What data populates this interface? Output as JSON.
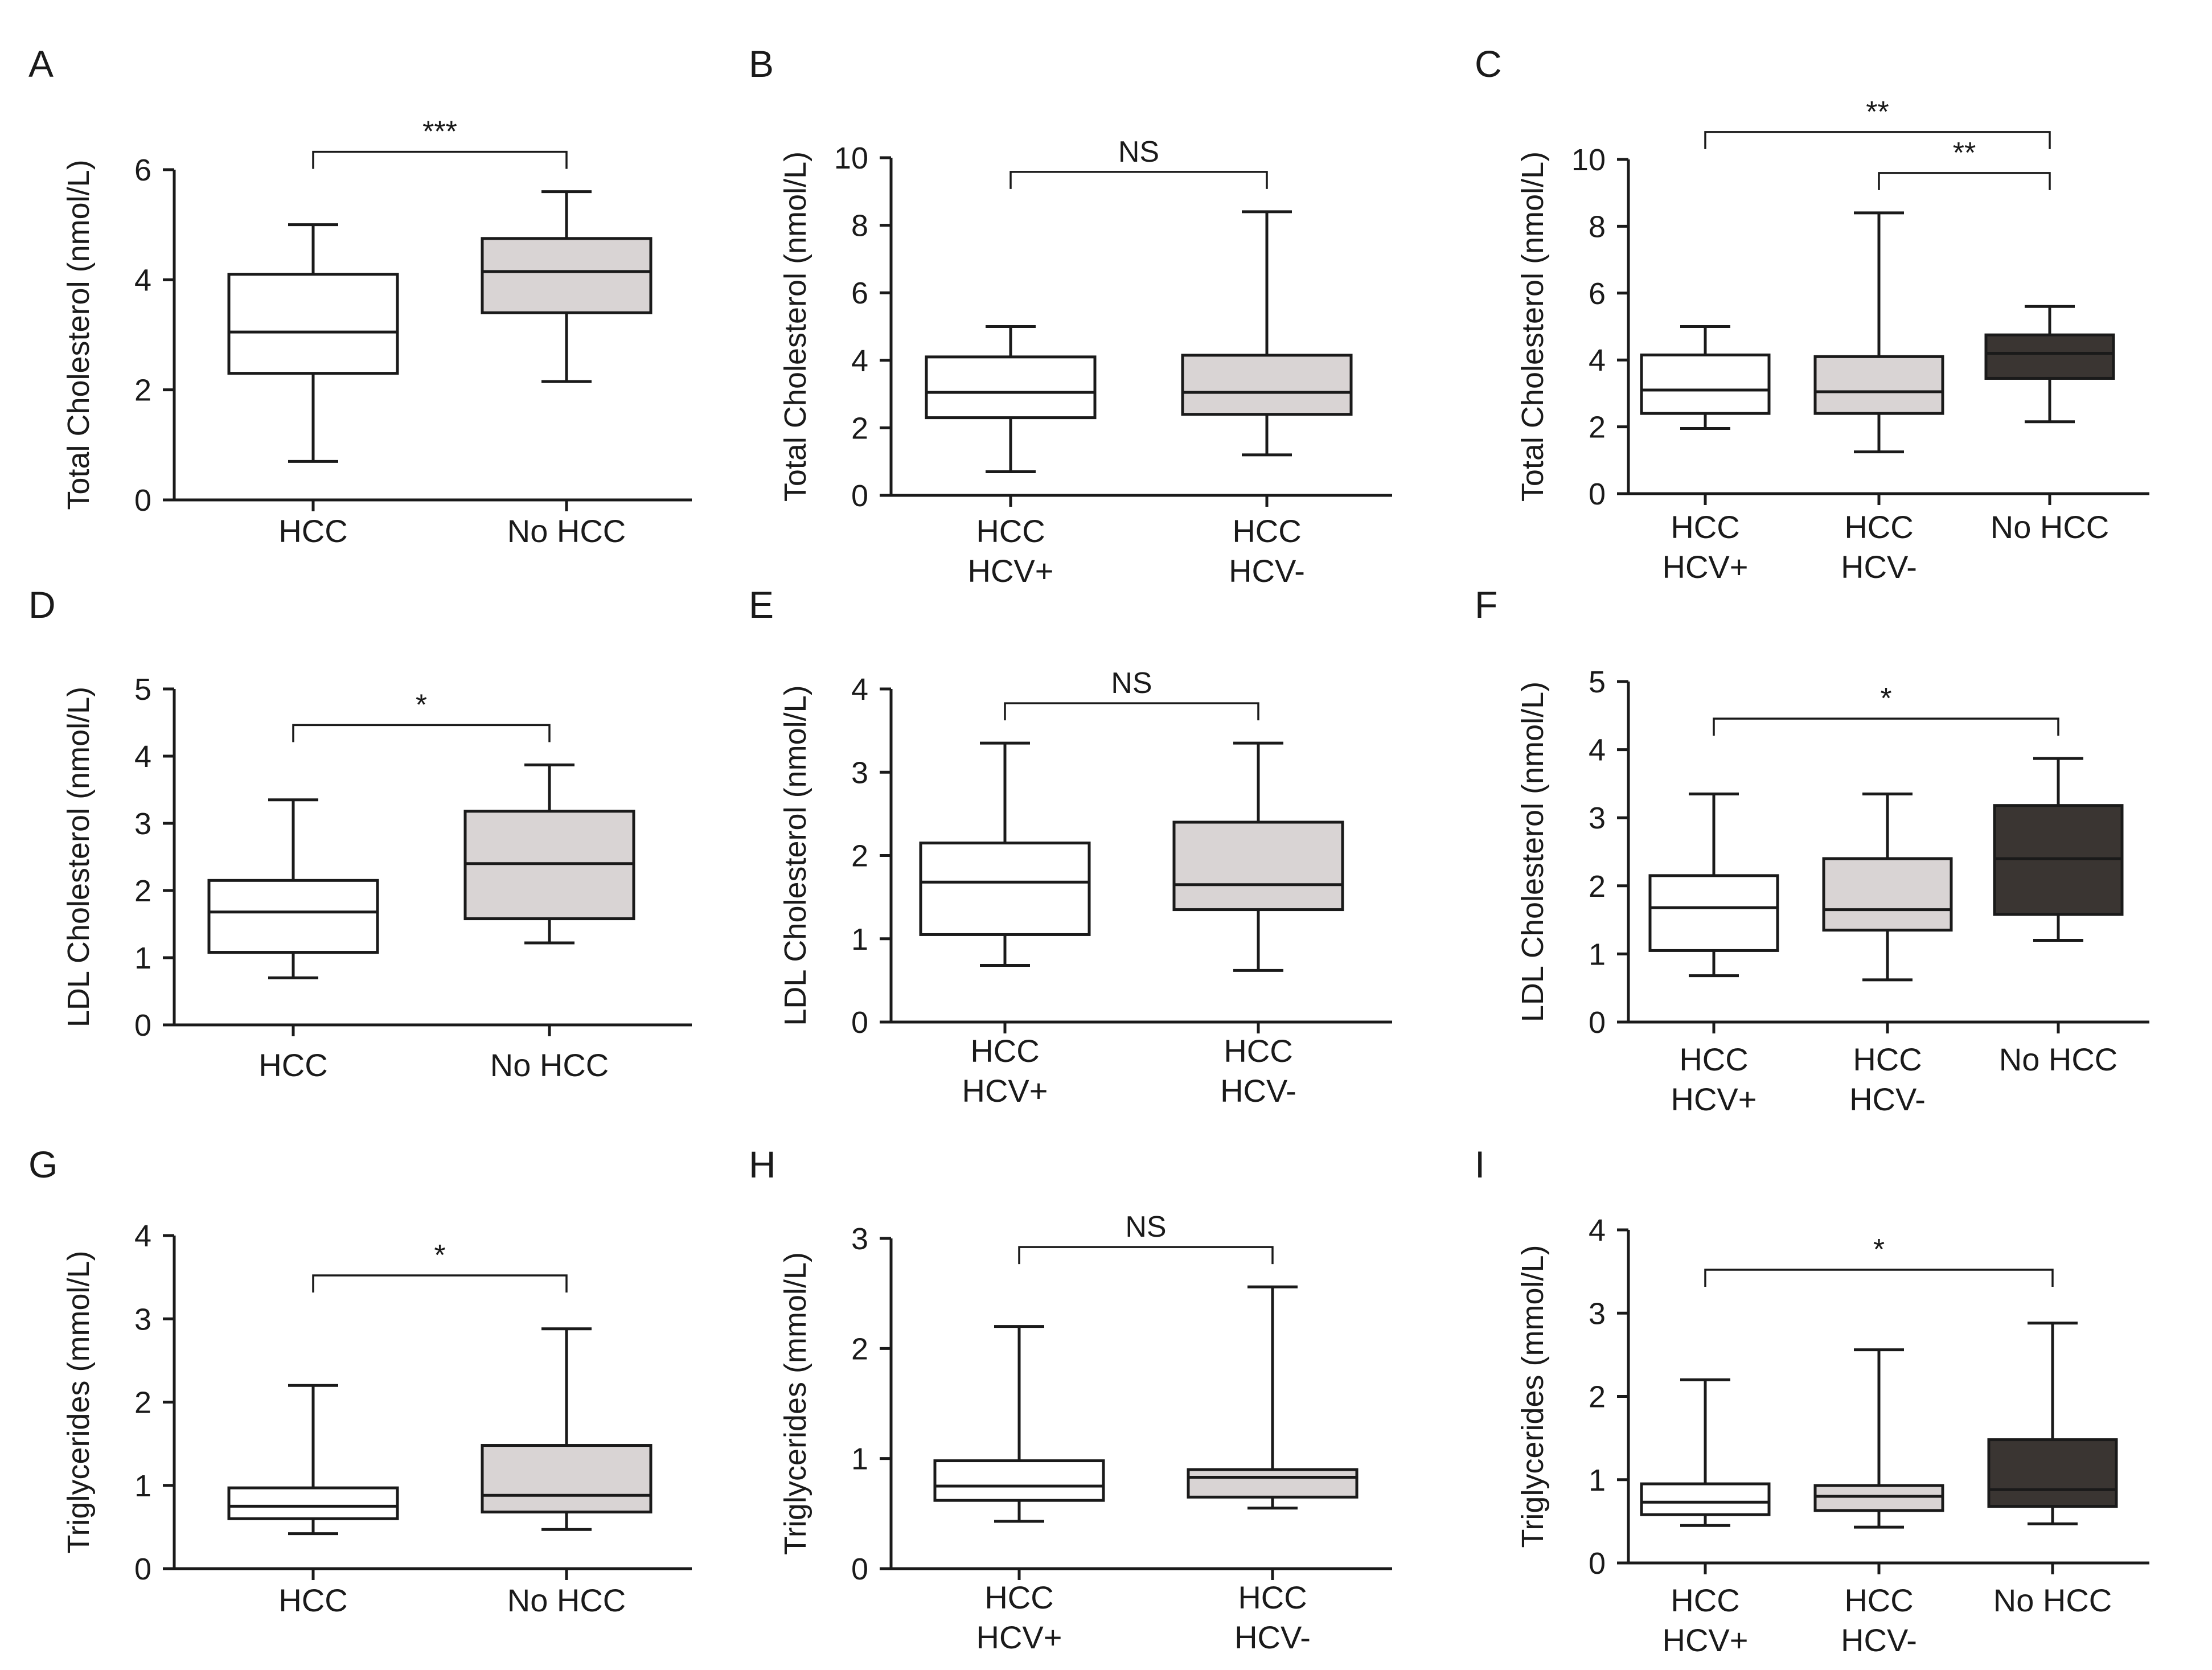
{
  "colors": {
    "hcc_fill": "#ffffff",
    "hcv_neg_fill": "#d9d4d4",
    "no_hcc_light_fill": "#d9d4d4",
    "no_hcc_dark_fill": "#3a3532",
    "line": "#1a1a1a"
  },
  "chart_data": [
    {
      "panel": "A",
      "type": "boxplot",
      "ylabel": "Total Cholesterol (nmol/L)",
      "ylim": [
        0,
        6
      ],
      "yticks": [
        0,
        2,
        4,
        6
      ],
      "categories": [
        [
          "HCC"
        ],
        [
          "No HCC"
        ]
      ],
      "boxes": [
        {
          "name": "HCC",
          "min": 0.7,
          "q1": 2.3,
          "median": 3.05,
          "q3": 4.1,
          "max": 5.0,
          "fill": "hcc_fill"
        },
        {
          "name": "No HCC",
          "min": 2.15,
          "q1": 3.4,
          "median": 4.15,
          "q3": 4.75,
          "max": 5.6,
          "fill": "no_hcc_light_fill"
        }
      ],
      "significance": [
        {
          "from": 0,
          "to": 1,
          "label": "***",
          "level": 0
        }
      ]
    },
    {
      "panel": "B",
      "type": "boxplot",
      "ylabel": "Total Cholesterol (nmol/L)",
      "ylim": [
        0,
        10
      ],
      "yticks": [
        0,
        2,
        4,
        6,
        8,
        10
      ],
      "categories": [
        [
          "HCC",
          "HCV+"
        ],
        [
          "HCC",
          "HCV-"
        ]
      ],
      "boxes": [
        {
          "name": "HCC HCV+",
          "min": 0.7,
          "q1": 2.3,
          "median": 3.05,
          "q3": 4.1,
          "max": 5.0,
          "fill": "hcc_fill"
        },
        {
          "name": "HCC HCV-",
          "min": 1.2,
          "q1": 2.4,
          "median": 3.05,
          "q3": 4.15,
          "max": 8.4,
          "fill": "hcv_neg_fill"
        }
      ],
      "significance": [
        {
          "from": 0,
          "to": 1,
          "label": "NS",
          "level": 0
        }
      ]
    },
    {
      "panel": "C",
      "type": "boxplot",
      "ylabel": "Total Cholesterol (nmol/L)",
      "ylim": [
        0,
        10
      ],
      "yticks": [
        0,
        2,
        4,
        6,
        8,
        10
      ],
      "categories": [
        [
          "HCC",
          "HCV+"
        ],
        [
          "HCC",
          "HCV-"
        ],
        [
          "No HCC"
        ]
      ],
      "boxes": [
        {
          "name": "HCC HCV+",
          "min": 1.95,
          "q1": 2.4,
          "median": 3.1,
          "q3": 4.15,
          "max": 5.0,
          "fill": "hcc_fill"
        },
        {
          "name": "HCC HCV-",
          "min": 1.25,
          "q1": 2.4,
          "median": 3.05,
          "q3": 4.1,
          "max": 8.4,
          "fill": "hcv_neg_fill"
        },
        {
          "name": "No HCC",
          "min": 2.15,
          "q1": 3.45,
          "median": 4.2,
          "q3": 4.75,
          "max": 5.6,
          "fill": "no_hcc_dark_fill"
        }
      ],
      "significance": [
        {
          "from": 0,
          "to": 2,
          "label": "**",
          "level": 1
        },
        {
          "from": 1,
          "to": 2,
          "label": "**",
          "level": 0
        }
      ]
    },
    {
      "panel": "D",
      "type": "boxplot",
      "ylabel": "LDL Cholesterol (nmol/L)",
      "ylim": [
        0,
        5
      ],
      "yticks": [
        0,
        1,
        2,
        3,
        4,
        5
      ],
      "categories": [
        [
          "HCC"
        ],
        [
          "No HCC"
        ]
      ],
      "boxes": [
        {
          "name": "HCC",
          "min": 0.7,
          "q1": 1.08,
          "median": 1.68,
          "q3": 2.15,
          "max": 3.35,
          "fill": "hcc_fill"
        },
        {
          "name": "No HCC",
          "min": 1.22,
          "q1": 1.58,
          "median": 2.4,
          "q3": 3.18,
          "max": 3.87,
          "fill": "no_hcc_light_fill"
        }
      ],
      "significance": [
        {
          "from": 0,
          "to": 1,
          "label": "*",
          "level": 0
        }
      ]
    },
    {
      "panel": "E",
      "type": "boxplot",
      "ylabel": "LDL Cholesterol (nmol/L)",
      "ylim": [
        0,
        4
      ],
      "yticks": [
        0,
        1,
        2,
        3,
        4
      ],
      "categories": [
        [
          "HCC",
          "HCV+"
        ],
        [
          "HCC",
          "HCV-"
        ]
      ],
      "boxes": [
        {
          "name": "HCC HCV+",
          "min": 0.68,
          "q1": 1.05,
          "median": 1.68,
          "q3": 2.15,
          "max": 3.35,
          "fill": "hcc_fill"
        },
        {
          "name": "HCC HCV-",
          "min": 0.62,
          "q1": 1.35,
          "median": 1.65,
          "q3": 2.4,
          "max": 3.35,
          "fill": "hcv_neg_fill"
        }
      ],
      "significance": [
        {
          "from": 0,
          "to": 1,
          "label": "NS",
          "level": 0
        }
      ]
    },
    {
      "panel": "F",
      "type": "boxplot",
      "ylabel": "LDL Cholesterol (nmol/L)",
      "ylim": [
        0,
        5
      ],
      "yticks": [
        0,
        1,
        2,
        3,
        4,
        5
      ],
      "categories": [
        [
          "HCC",
          "HCV+"
        ],
        [
          "HCC",
          "HCV-"
        ],
        [
          "No HCC"
        ]
      ],
      "boxes": [
        {
          "name": "HCC HCV+",
          "min": 0.68,
          "q1": 1.05,
          "median": 1.68,
          "q3": 2.15,
          "max": 3.35,
          "fill": "hcc_fill"
        },
        {
          "name": "HCC HCV-",
          "min": 0.62,
          "q1": 1.35,
          "median": 1.65,
          "q3": 2.4,
          "max": 3.35,
          "fill": "hcv_neg_fill"
        },
        {
          "name": "No HCC",
          "min": 1.2,
          "q1": 1.58,
          "median": 2.4,
          "q3": 3.18,
          "max": 3.87,
          "fill": "no_hcc_dark_fill"
        }
      ],
      "significance": [
        {
          "from": 0,
          "to": 2,
          "label": "*",
          "level": 0
        }
      ]
    },
    {
      "panel": "G",
      "type": "boxplot",
      "ylabel": "Triglycerides (mmol/L)",
      "ylim": [
        0,
        4
      ],
      "yticks": [
        0,
        1,
        2,
        3,
        4
      ],
      "categories": [
        [
          "HCC"
        ],
        [
          "No HCC"
        ]
      ],
      "boxes": [
        {
          "name": "HCC",
          "min": 0.42,
          "q1": 0.6,
          "median": 0.75,
          "q3": 0.97,
          "max": 2.2,
          "fill": "hcc_fill"
        },
        {
          "name": "No HCC",
          "min": 0.47,
          "q1": 0.68,
          "median": 0.88,
          "q3": 1.48,
          "max": 2.88,
          "fill": "no_hcc_light_fill"
        }
      ],
      "significance": [
        {
          "from": 0,
          "to": 1,
          "label": "*",
          "level": 0
        }
      ]
    },
    {
      "panel": "H",
      "type": "boxplot",
      "ylabel": "Triglycerides (mmol/L)",
      "ylim": [
        0,
        3
      ],
      "yticks": [
        0,
        1,
        2,
        3
      ],
      "categories": [
        [
          "HCC",
          "HCV+"
        ],
        [
          "HCC",
          "HCV-"
        ]
      ],
      "boxes": [
        {
          "name": "HCC HCV+",
          "min": 0.43,
          "q1": 0.62,
          "median": 0.75,
          "q3": 0.98,
          "max": 2.2,
          "fill": "hcc_fill"
        },
        {
          "name": "HCC HCV-",
          "min": 0.55,
          "q1": 0.65,
          "median": 0.83,
          "q3": 0.9,
          "max": 2.56,
          "fill": "hcv_neg_fill"
        }
      ],
      "significance": [
        {
          "from": 0,
          "to": 1,
          "label": "NS",
          "level": 0
        }
      ]
    },
    {
      "panel": "I",
      "type": "boxplot",
      "ylabel": "Triglycerides (mmol/L)",
      "ylim": [
        0,
        4
      ],
      "yticks": [
        0,
        1,
        2,
        3,
        4
      ],
      "categories": [
        [
          "HCC",
          "HCV+"
        ],
        [
          "HCC",
          "HCV-"
        ],
        [
          "No HCC"
        ]
      ],
      "boxes": [
        {
          "name": "HCC HCV+",
          "min": 0.45,
          "q1": 0.58,
          "median": 0.73,
          "q3": 0.95,
          "max": 2.2,
          "fill": "hcc_fill"
        },
        {
          "name": "HCC HCV-",
          "min": 0.43,
          "q1": 0.63,
          "median": 0.8,
          "q3": 0.93,
          "max": 2.56,
          "fill": "hcv_neg_fill"
        },
        {
          "name": "No HCC",
          "min": 0.47,
          "q1": 0.68,
          "median": 0.88,
          "q3": 1.48,
          "max": 2.88,
          "fill": "no_hcc_dark_fill"
        }
      ],
      "significance": [
        {
          "from": 0,
          "to": 2,
          "label": "*",
          "level": 0
        }
      ]
    }
  ]
}
